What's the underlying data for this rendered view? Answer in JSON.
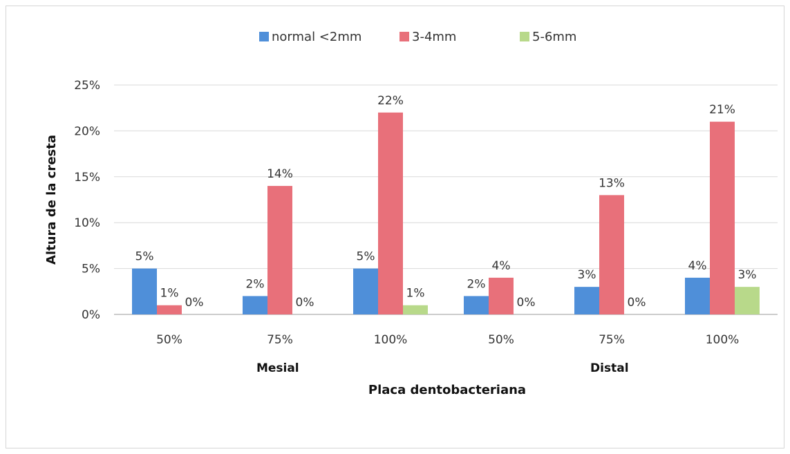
{
  "chart_data": {
    "type": "bar",
    "title": "",
    "xlabel": "Placa dentobacteriana",
    "ylabel": "Altura de la cresta",
    "ylim": [
      0,
      25
    ],
    "yticks": [
      "0%",
      "5%",
      "10%",
      "15%",
      "20%",
      "25%"
    ],
    "grid": true,
    "legend_position": "top",
    "groups": [
      {
        "label": "Mesial",
        "categories": [
          "50%",
          "75%",
          "100%"
        ]
      },
      {
        "label": "Distal",
        "categories": [
          "50%",
          "75%",
          "100%"
        ]
      }
    ],
    "categories": [
      "50%",
      "75%",
      "100%",
      "50%",
      "75%",
      "100%"
    ],
    "series": [
      {
        "name": "normal <2mm",
        "color": "#4f8fd9",
        "values": [
          5,
          2,
          5,
          2,
          3,
          4
        ],
        "labels": [
          "5%",
          "2%",
          "5%",
          "2%",
          "3%",
          "4%"
        ]
      },
      {
        "name": "3-4mm",
        "color": "#e8707a",
        "values": [
          1,
          14,
          22,
          4,
          13,
          21
        ],
        "labels": [
          "1%",
          "14%",
          "22%",
          "4%",
          "13%",
          "21%"
        ]
      },
      {
        "name": "5-6mm",
        "color": "#b8d98a",
        "values": [
          0,
          0,
          1,
          0,
          0,
          3
        ],
        "labels": [
          "0%",
          "0%",
          "1%",
          "0%",
          "0%",
          "3%"
        ]
      }
    ]
  }
}
